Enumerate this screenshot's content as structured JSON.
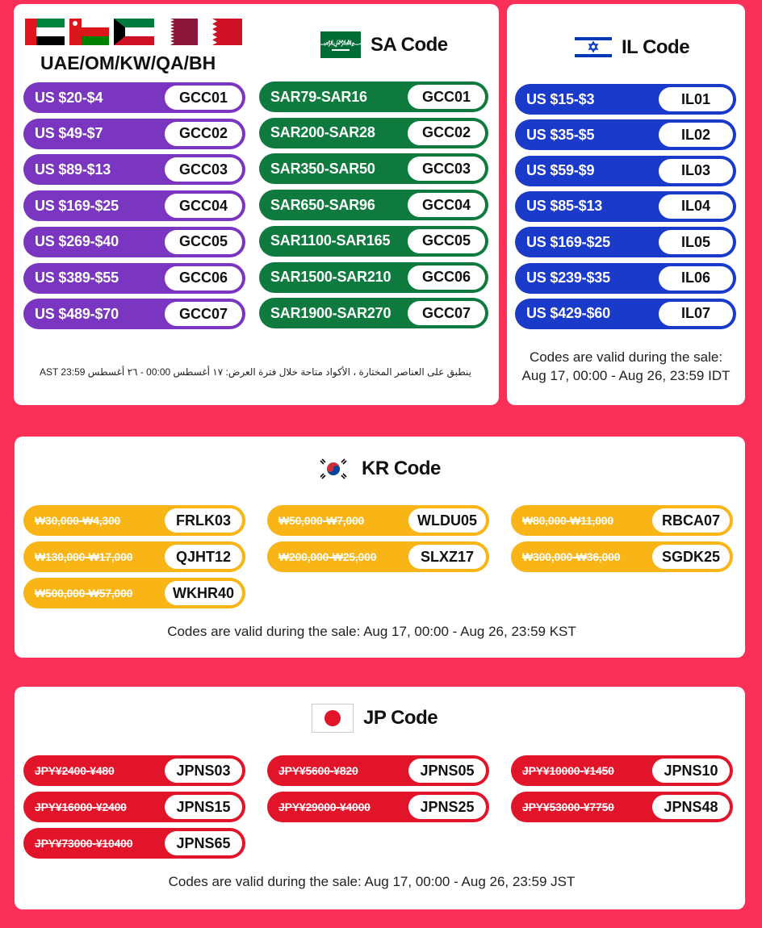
{
  "gcc": {
    "region_label": "UAE/OM/KW/QA/BH",
    "flags": [
      "uae-flag",
      "oman-flag",
      "kuwait-flag",
      "qatar-flag",
      "bahrain-flag"
    ],
    "coupons": [
      {
        "amount": "US $20-$4",
        "code": "GCC01"
      },
      {
        "amount": "US $49-$7",
        "code": "GCC02"
      },
      {
        "amount": "US $89-$13",
        "code": "GCC03"
      },
      {
        "amount": "US $169-$25",
        "code": "GCC04"
      },
      {
        "amount": "US $269-$40",
        "code": "GCC05"
      },
      {
        "amount": "US $389-$55",
        "code": "GCC06"
      },
      {
        "amount": "US $489-$70",
        "code": "GCC07"
      }
    ],
    "arabic_note": "ينطبق على العناصر المختارة ، الأكواد متاحة خلال فترة العرض: ١٧ أغسطس 00:00  -  ٢٦ أغسطس AST 23:59",
    "accent": "#7a36c0"
  },
  "sa": {
    "title": "SA Code",
    "flag": "saudi-arabia-flag",
    "coupons": [
      {
        "amount": "SAR79-SAR16",
        "code": "GCC01"
      },
      {
        "amount": "SAR200-SAR28",
        "code": "GCC02"
      },
      {
        "amount": "SAR350-SAR50",
        "code": "GCC03"
      },
      {
        "amount": "SAR650-SAR96",
        "code": "GCC04"
      },
      {
        "amount": "SAR1100-SAR165",
        "code": "GCC05"
      },
      {
        "amount": "SAR1500-SAR210",
        "code": "GCC06"
      },
      {
        "amount": "SAR1900-SAR270",
        "code": "GCC07"
      }
    ],
    "accent": "#0f7a3d"
  },
  "il": {
    "title": "IL Code",
    "flag": "israel-flag",
    "coupons": [
      {
        "amount": "US $15-$3",
        "code": "IL01"
      },
      {
        "amount": "US $35-$5",
        "code": "IL02"
      },
      {
        "amount": "US $59-$9",
        "code": "IL03"
      },
      {
        "amount": "US $85-$13",
        "code": "IL04"
      },
      {
        "amount": "US $169-$25",
        "code": "IL05"
      },
      {
        "amount": "US $239-$35",
        "code": "IL06"
      },
      {
        "amount": "US $429-$60",
        "code": "IL07"
      }
    ],
    "note_line1": "Codes are valid during the sale:",
    "note_line2": "Aug 17, 00:00 - Aug 26, 23:59 IDT",
    "accent": "#1a3ac9"
  },
  "kr": {
    "title": "KR Code",
    "flag": "south-korea-flag",
    "coupons": [
      {
        "amount": "₩30,000-₩4,300",
        "code": "FRLK03"
      },
      {
        "amount": "₩50,000-₩7,000",
        "code": "WLDU05"
      },
      {
        "amount": "₩80,000-₩11,000",
        "code": "RBCA07"
      },
      {
        "amount": "₩130,000-₩17,000",
        "code": "QJHT12"
      },
      {
        "amount": "₩200,000-₩25,000",
        "code": "SLXZ17"
      },
      {
        "amount": "₩300,000-₩36,000",
        "code": "SGDK25"
      },
      {
        "amount": "₩500,000-₩57,000",
        "code": "WKHR40"
      }
    ],
    "note": "Codes are valid during the sale: Aug 17, 00:00 - Aug 26, 23:59 KST",
    "accent": "#f9b415"
  },
  "jp": {
    "title": "JP Code",
    "flag": "japan-flag",
    "coupons": [
      {
        "amount": "JPY¥2400-¥480",
        "code": "JPNS03"
      },
      {
        "amount": "JPY¥5600-¥820",
        "code": "JPNS05"
      },
      {
        "amount": "JPY¥10000-¥1450",
        "code": "JPNS10"
      },
      {
        "amount": "JPY¥16000-¥2400",
        "code": "JPNS15"
      },
      {
        "amount": "JPY¥29000-¥4000",
        "code": "JPNS25"
      },
      {
        "amount": "JPY¥53000-¥7750",
        "code": "JPNS48"
      },
      {
        "amount": "JPY¥73000-¥10400",
        "code": "JPNS65"
      }
    ],
    "note": "Codes are valid during the sale: Aug 17, 00:00 - Aug 26, 23:59 JST",
    "accent": "#e11429"
  }
}
